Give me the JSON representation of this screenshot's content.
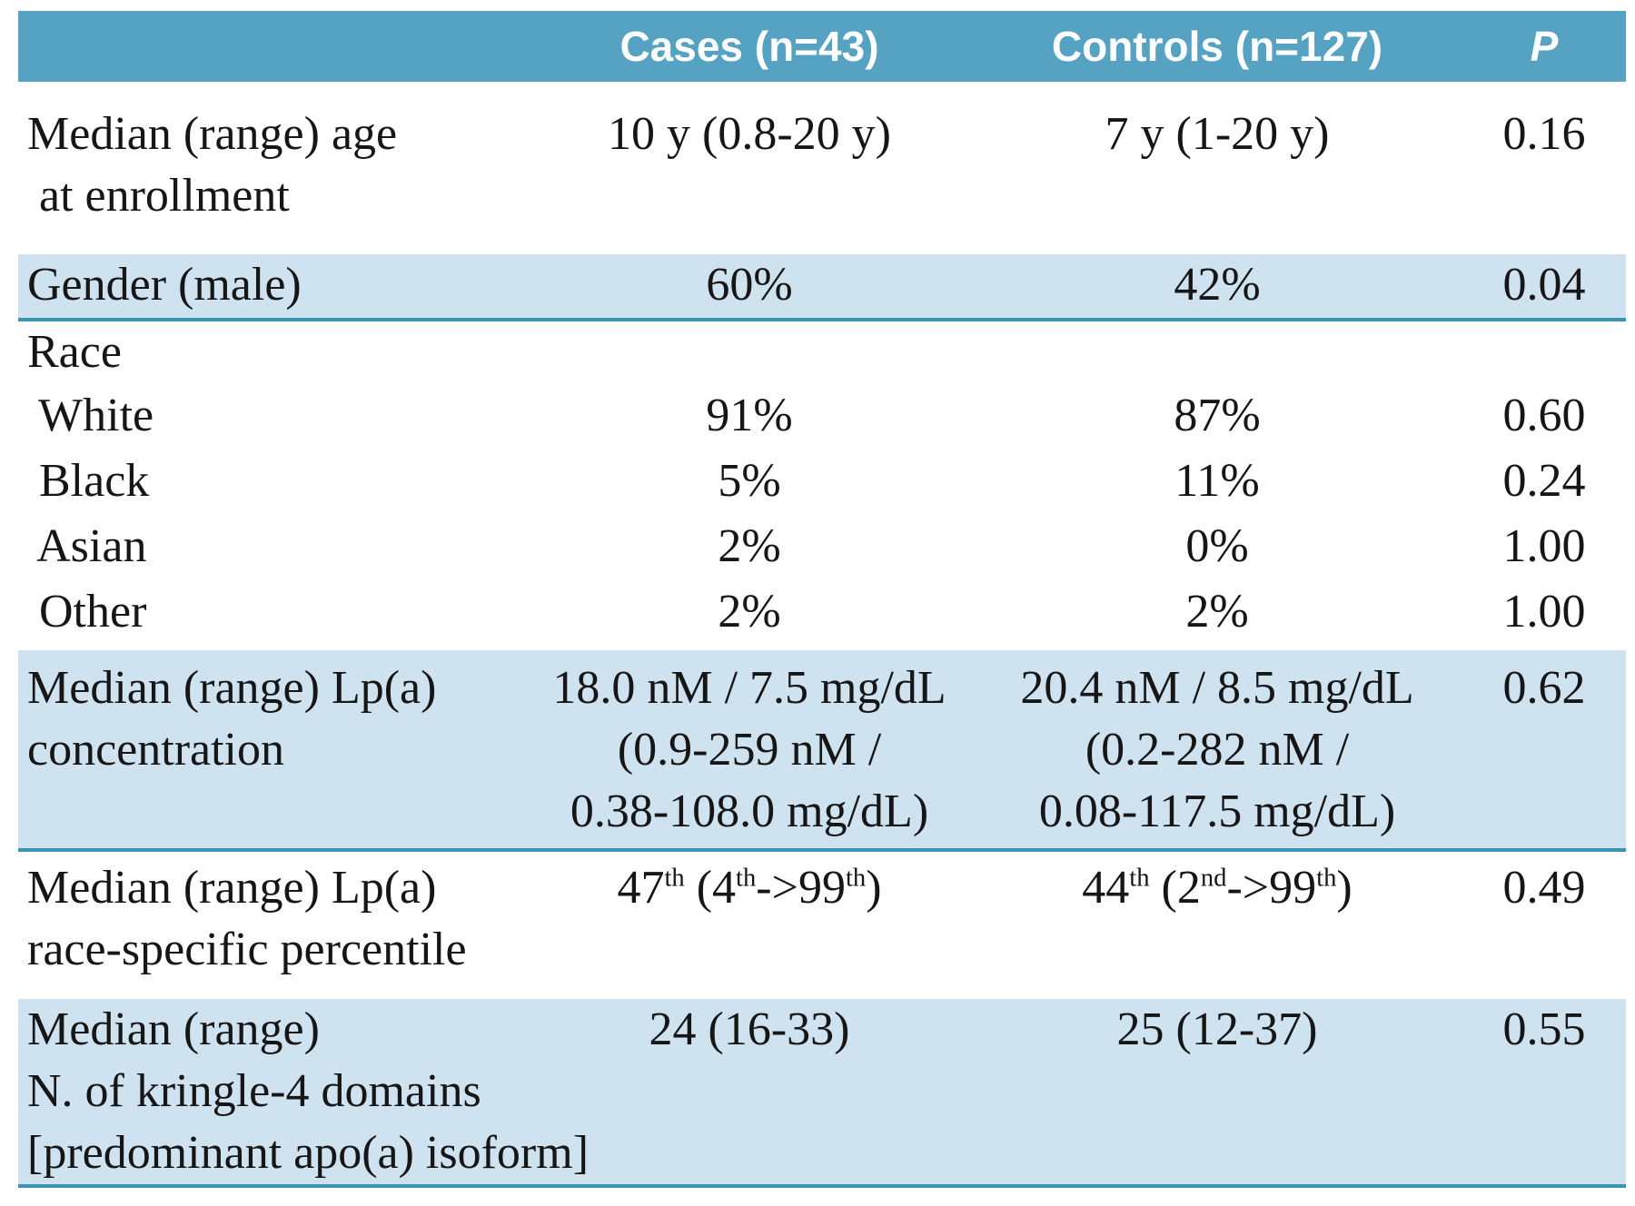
{
  "colors": {
    "header_bg": "#55a2c3",
    "band_bg": "#cfe2ef",
    "rule": "#3a93b0",
    "text": "#161616"
  },
  "header": {
    "label": "",
    "cases": "Cases (n=43)",
    "controls": "Controls (n=127)",
    "p": "P"
  },
  "rows": [
    {
      "label": "Median (range) age\n at enrollment",
      "cases": "10 y (0.8-20 y)",
      "controls": "7 y (1-20 y)",
      "p": "0.16"
    },
    {
      "label": "Gender (male)",
      "cases": "60%",
      "controls": "42%",
      "p": "0.04"
    },
    {
      "label": "Race",
      "cases": "",
      "controls": "",
      "p": ""
    },
    {
      "label": " White",
      "cases": "91%",
      "controls": "87%",
      "p": "0.60"
    },
    {
      "label": " Black",
      "cases": "5%",
      "controls": "11%",
      "p": "0.24"
    },
    {
      "label": " Asian",
      "cases": "2%",
      "controls": "0%",
      "p": "1.00"
    },
    {
      "label": " Other",
      "cases": "2%",
      "controls": "2%",
      "p": "1.00"
    },
    {
      "label": "Median (range) Lp(a)\nconcentration",
      "cases": "18.0 nM / 7.5 mg/dL\n(0.9-259 nM /\n0.38-108.0 mg/dL)",
      "controls": "20.4 nM / 8.5 mg/dL\n(0.2-282 nM /\n0.08-117.5 mg/dL)",
      "p": "0.62"
    },
    {
      "label": "Median (range) Lp(a)\nrace-specific percentile",
      "cases": "47^th^ (4^th^->99^th^)",
      "controls": "44^th^ (2^nd^->99^th^)",
      "p": "0.49"
    },
    {
      "label": "Median (range)\nN. of kringle-4 domains\n[predominant apo(a) isoform]",
      "cases": "24 (16-33)",
      "controls": "25 (12-37)",
      "p": "0.55"
    }
  ]
}
